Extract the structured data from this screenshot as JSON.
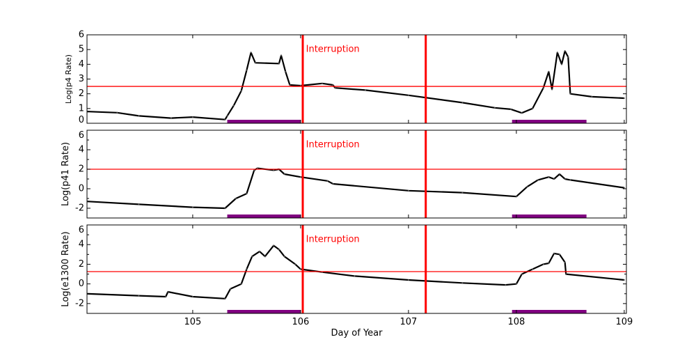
{
  "chart_data": [
    {
      "type": "line",
      "ylabel": "Log(p4 Rate)",
      "xlim": [
        104.02,
        109.02
      ],
      "ylim": [
        0,
        6
      ],
      "yticks": [
        0,
        1,
        2,
        3,
        4,
        5,
        6
      ],
      "threshold": 2.5,
      "annotation": {
        "text": "Interruption",
        "x": 106.05,
        "y": 5.0
      },
      "series": [
        {
          "color": "#000000",
          "points": [
            [
              104.02,
              0.8
            ],
            [
              104.3,
              0.72
            ],
            [
              104.5,
              0.5
            ],
            [
              104.8,
              0.35
            ],
            [
              105.0,
              0.42
            ],
            [
              105.3,
              0.25
            ],
            [
              105.32,
              0.5
            ],
            [
              105.38,
              1.2
            ],
            [
              105.45,
              2.2
            ],
            [
              105.5,
              3.6
            ],
            [
              105.54,
              4.8
            ],
            [
              105.58,
              4.1
            ],
            [
              105.8,
              4.05
            ],
            [
              105.82,
              4.6
            ],
            [
              105.86,
              3.5
            ],
            [
              105.9,
              2.6
            ],
            [
              106.0,
              2.55
            ],
            [
              106.2,
              2.7
            ],
            [
              106.3,
              2.6
            ],
            [
              106.32,
              2.4
            ],
            [
              106.6,
              2.25
            ],
            [
              107.0,
              1.9
            ],
            [
              107.5,
              1.4
            ],
            [
              107.8,
              1.05
            ],
            [
              107.95,
              0.95
            ],
            [
              108.05,
              0.7
            ],
            [
              108.15,
              1.0
            ],
            [
              108.25,
              2.4
            ],
            [
              108.3,
              3.5
            ],
            [
              108.33,
              2.3
            ],
            [
              108.38,
              4.8
            ],
            [
              108.42,
              4.0
            ],
            [
              108.45,
              4.9
            ],
            [
              108.48,
              4.5
            ],
            [
              108.5,
              2.0
            ],
            [
              108.7,
              1.8
            ],
            [
              109.0,
              1.7
            ]
          ]
        }
      ]
    },
    {
      "type": "line",
      "ylabel": "Log(p41 Rate)",
      "xlim": [
        104.02,
        109.02
      ],
      "ylim": [
        -3,
        6
      ],
      "yticks": [
        -2,
        0,
        2,
        4,
        6
      ],
      "threshold": 2.0,
      "annotation": {
        "text": "Interruption",
        "x": 106.05,
        "y": 4.5
      },
      "series": [
        {
          "color": "#000000",
          "points": [
            [
              104.02,
              -1.3
            ],
            [
              104.5,
              -1.6
            ],
            [
              105.0,
              -1.9
            ],
            [
              105.3,
              -2.0
            ],
            [
              105.4,
              -1.0
            ],
            [
              105.5,
              -0.5
            ],
            [
              105.57,
              1.9
            ],
            [
              105.6,
              2.1
            ],
            [
              105.75,
              1.9
            ],
            [
              105.8,
              2.0
            ],
            [
              105.85,
              1.5
            ],
            [
              106.0,
              1.2
            ],
            [
              106.25,
              0.8
            ],
            [
              106.3,
              0.5
            ],
            [
              107.0,
              -0.2
            ],
            [
              107.5,
              -0.4
            ],
            [
              108.0,
              -0.8
            ],
            [
              108.1,
              0.2
            ],
            [
              108.2,
              0.9
            ],
            [
              108.3,
              1.2
            ],
            [
              108.35,
              1.0
            ],
            [
              108.4,
              1.5
            ],
            [
              108.45,
              1.0
            ],
            [
              108.5,
              0.9
            ],
            [
              109.0,
              0.1
            ]
          ]
        }
      ]
    },
    {
      "type": "line",
      "ylabel": "Log(e1300 Rate)",
      "xlabel": "Day of Year",
      "xlim": [
        104.02,
        109.02
      ],
      "ylim": [
        -3,
        6
      ],
      "yticks": [
        -2,
        0,
        2,
        4,
        6
      ],
      "xticks": [
        105,
        106,
        107,
        108,
        109
      ],
      "threshold": 1.25,
      "annotation": {
        "text": "Interruption",
        "x": 106.05,
        "y": 4.5
      },
      "series": [
        {
          "color": "#000000",
          "points": [
            [
              104.02,
              -1.0
            ],
            [
              104.5,
              -1.2
            ],
            [
              104.75,
              -1.3
            ],
            [
              104.77,
              -0.8
            ],
            [
              105.0,
              -1.3
            ],
            [
              105.3,
              -1.5
            ],
            [
              105.35,
              -0.5
            ],
            [
              105.45,
              0.0
            ],
            [
              105.5,
              1.5
            ],
            [
              105.55,
              2.8
            ],
            [
              105.62,
              3.3
            ],
            [
              105.67,
              2.8
            ],
            [
              105.75,
              3.9
            ],
            [
              105.8,
              3.5
            ],
            [
              105.85,
              2.8
            ],
            [
              105.95,
              2.0
            ],
            [
              106.0,
              1.5
            ],
            [
              106.2,
              1.2
            ],
            [
              106.5,
              0.8
            ],
            [
              107.0,
              0.4
            ],
            [
              107.5,
              0.1
            ],
            [
              107.9,
              -0.1
            ],
            [
              108.0,
              0.0
            ],
            [
              108.05,
              1.0
            ],
            [
              108.15,
              1.5
            ],
            [
              108.25,
              2.0
            ],
            [
              108.3,
              2.1
            ],
            [
              108.35,
              3.1
            ],
            [
              108.4,
              3.0
            ],
            [
              108.45,
              2.2
            ],
            [
              108.46,
              1.0
            ],
            [
              109.0,
              0.4
            ]
          ]
        }
      ]
    }
  ],
  "interruptions": [
    106.02,
    107.16
  ],
  "intervals": [
    [
      105.32,
      106.0
    ],
    [
      107.96,
      108.65
    ]
  ],
  "colors": {
    "interruption": "#ff0000",
    "threshold": "#ff0000",
    "interval": "#800080",
    "data": "#000000"
  }
}
